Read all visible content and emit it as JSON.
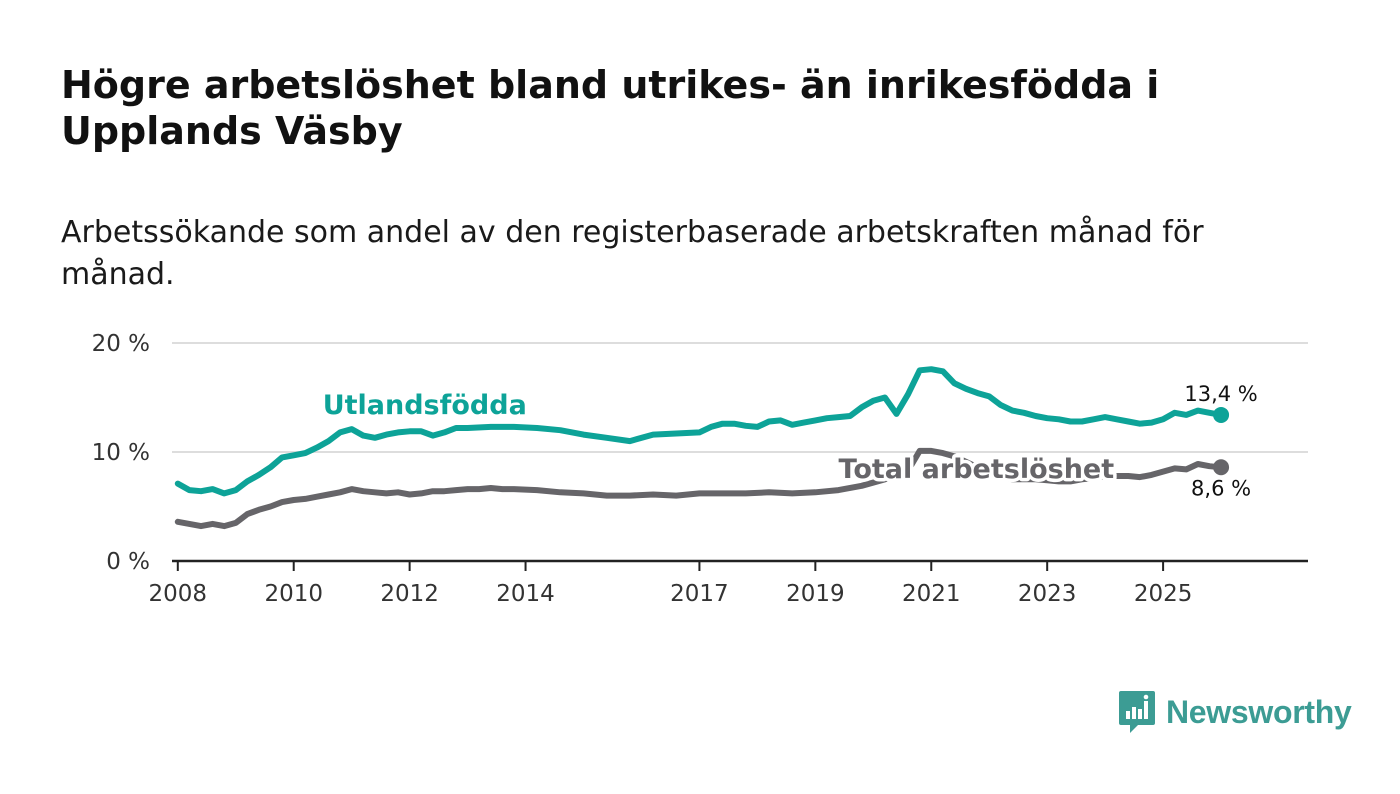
{
  "title": "Högre arbetslöshet bland utrikes- än inrikesfödda i Upplands Väsby",
  "subtitle": "Arbetssökande som andel av den registerbaserade arbetskraften månad för månad.",
  "brand": {
    "name": "Newsworthy",
    "color": "#3c9c94"
  },
  "colors": {
    "utlandsfodda": "#0da398",
    "total": "#666569",
    "grid": "#dddddd",
    "axis": "#222222"
  },
  "chart_data": {
    "type": "line",
    "title": "Högre arbetslöshet bland utrikes- än inrikesfödda i Upplands Väsby",
    "subtitle": "Arbetssökande som andel av den registerbaserade arbetskraften månad för månad.",
    "xlabel": "",
    "ylabel": "",
    "xlim": [
      2007.9,
      2027.5
    ],
    "ylim": [
      0,
      20
    ],
    "grid": true,
    "x_ticks": [
      2008,
      2010,
      2012,
      2014,
      2017,
      2019,
      2021,
      2023,
      2025
    ],
    "x_tick_labels": [
      "2008",
      "2010",
      "2012",
      "2014",
      "2017",
      "2019",
      "2021",
      "2023",
      "2025"
    ],
    "y_ticks": [
      0,
      10,
      20
    ],
    "y_tick_labels": [
      "0 %",
      "10 %",
      "20 %"
    ],
    "series": [
      {
        "name": "Utlandsfödda",
        "label": "Utlandsfödda",
        "label_at": [
          2010.5,
          13.5
        ],
        "end_label": "13,4 %",
        "points": [
          [
            2008.0,
            7.1
          ],
          [
            2008.2,
            6.5
          ],
          [
            2008.4,
            6.4
          ],
          [
            2008.6,
            6.6
          ],
          [
            2008.8,
            6.2
          ],
          [
            2009.0,
            6.5
          ],
          [
            2009.2,
            7.3
          ],
          [
            2009.4,
            7.9
          ],
          [
            2009.6,
            8.6
          ],
          [
            2009.8,
            9.5
          ],
          [
            2010.0,
            9.7
          ],
          [
            2010.2,
            9.9
          ],
          [
            2010.4,
            10.4
          ],
          [
            2010.6,
            11.0
          ],
          [
            2010.8,
            11.8
          ],
          [
            2011.0,
            12.1
          ],
          [
            2011.2,
            11.5
          ],
          [
            2011.4,
            11.3
          ],
          [
            2011.6,
            11.6
          ],
          [
            2011.8,
            11.8
          ],
          [
            2012.0,
            11.9
          ],
          [
            2012.2,
            11.9
          ],
          [
            2012.4,
            11.5
          ],
          [
            2012.6,
            11.8
          ],
          [
            2012.8,
            12.2
          ],
          [
            2013.0,
            12.2
          ],
          [
            2013.4,
            12.3
          ],
          [
            2013.8,
            12.3
          ],
          [
            2014.2,
            12.2
          ],
          [
            2014.6,
            12.0
          ],
          [
            2015.0,
            11.6
          ],
          [
            2015.4,
            11.3
          ],
          [
            2015.8,
            11.0
          ],
          [
            2016.2,
            11.6
          ],
          [
            2016.6,
            11.7
          ],
          [
            2017.0,
            11.8
          ],
          [
            2017.2,
            12.3
          ],
          [
            2017.4,
            12.6
          ],
          [
            2017.6,
            12.6
          ],
          [
            2017.8,
            12.4
          ],
          [
            2018.0,
            12.3
          ],
          [
            2018.2,
            12.8
          ],
          [
            2018.4,
            12.9
          ],
          [
            2018.6,
            12.5
          ],
          [
            2018.8,
            12.7
          ],
          [
            2019.0,
            12.9
          ],
          [
            2019.2,
            13.1
          ],
          [
            2019.4,
            13.2
          ],
          [
            2019.6,
            13.3
          ],
          [
            2019.8,
            14.1
          ],
          [
            2020.0,
            14.7
          ],
          [
            2020.2,
            15.0
          ],
          [
            2020.4,
            13.5
          ],
          [
            2020.6,
            15.3
          ],
          [
            2020.8,
            17.5
          ],
          [
            2021.0,
            17.6
          ],
          [
            2021.2,
            17.4
          ],
          [
            2021.4,
            16.3
          ],
          [
            2021.6,
            15.8
          ],
          [
            2021.8,
            15.4
          ],
          [
            2022.0,
            15.1
          ],
          [
            2022.2,
            14.3
          ],
          [
            2022.4,
            13.8
          ],
          [
            2022.6,
            13.6
          ],
          [
            2022.8,
            13.3
          ],
          [
            2023.0,
            13.1
          ],
          [
            2023.2,
            13.0
          ],
          [
            2023.4,
            12.8
          ],
          [
            2023.6,
            12.8
          ],
          [
            2023.8,
            13.0
          ],
          [
            2024.0,
            13.2
          ],
          [
            2024.2,
            13.0
          ],
          [
            2024.4,
            12.8
          ],
          [
            2024.6,
            12.6
          ],
          [
            2024.8,
            12.7
          ],
          [
            2025.0,
            13.0
          ],
          [
            2025.2,
            13.6
          ],
          [
            2025.4,
            13.4
          ],
          [
            2025.6,
            13.8
          ],
          [
            2025.8,
            13.6
          ],
          [
            2026.0,
            13.4
          ]
        ]
      },
      {
        "name": "Total arbetslöshet",
        "label": "Total arbetslöshet",
        "label_at": [
          2019.4,
          7.6
        ],
        "end_label": "8,6 %",
        "points": [
          [
            2008.0,
            3.6
          ],
          [
            2008.2,
            3.4
          ],
          [
            2008.4,
            3.2
          ],
          [
            2008.6,
            3.4
          ],
          [
            2008.8,
            3.2
          ],
          [
            2009.0,
            3.5
          ],
          [
            2009.2,
            4.3
          ],
          [
            2009.4,
            4.7
          ],
          [
            2009.6,
            5.0
          ],
          [
            2009.8,
            5.4
          ],
          [
            2010.0,
            5.6
          ],
          [
            2010.2,
            5.7
          ],
          [
            2010.4,
            5.9
          ],
          [
            2010.6,
            6.1
          ],
          [
            2010.8,
            6.3
          ],
          [
            2011.0,
            6.6
          ],
          [
            2011.2,
            6.4
          ],
          [
            2011.4,
            6.3
          ],
          [
            2011.6,
            6.2
          ],
          [
            2011.8,
            6.3
          ],
          [
            2012.0,
            6.1
          ],
          [
            2012.2,
            6.2
          ],
          [
            2012.4,
            6.4
          ],
          [
            2012.6,
            6.4
          ],
          [
            2012.8,
            6.5
          ],
          [
            2013.0,
            6.6
          ],
          [
            2013.2,
            6.6
          ],
          [
            2013.4,
            6.7
          ],
          [
            2013.6,
            6.6
          ],
          [
            2013.8,
            6.6
          ],
          [
            2014.2,
            6.5
          ],
          [
            2014.6,
            6.3
          ],
          [
            2015.0,
            6.2
          ],
          [
            2015.4,
            6.0
          ],
          [
            2015.8,
            6.0
          ],
          [
            2016.2,
            6.1
          ],
          [
            2016.6,
            6.0
          ],
          [
            2017.0,
            6.2
          ],
          [
            2017.4,
            6.2
          ],
          [
            2017.8,
            6.2
          ],
          [
            2018.2,
            6.3
          ],
          [
            2018.6,
            6.2
          ],
          [
            2019.0,
            6.3
          ],
          [
            2019.4,
            6.5
          ],
          [
            2019.8,
            6.9
          ],
          [
            2020.2,
            7.5
          ],
          [
            2020.6,
            8.3
          ],
          [
            2020.8,
            10.1
          ],
          [
            2021.0,
            10.1
          ],
          [
            2021.2,
            9.9
          ],
          [
            2021.4,
            9.6
          ],
          [
            2021.6,
            9.1
          ],
          [
            2021.8,
            8.6
          ],
          [
            2022.0,
            8.0
          ],
          [
            2022.2,
            7.7
          ],
          [
            2022.4,
            7.5
          ],
          [
            2022.6,
            7.5
          ],
          [
            2022.8,
            7.5
          ],
          [
            2023.0,
            7.4
          ],
          [
            2023.2,
            7.3
          ],
          [
            2023.4,
            7.3
          ],
          [
            2023.6,
            7.5
          ],
          [
            2023.8,
            7.6
          ],
          [
            2024.0,
            7.8
          ],
          [
            2024.2,
            7.8
          ],
          [
            2024.4,
            7.8
          ],
          [
            2024.6,
            7.7
          ],
          [
            2024.8,
            7.9
          ],
          [
            2025.0,
            8.2
          ],
          [
            2025.2,
            8.5
          ],
          [
            2025.4,
            8.4
          ],
          [
            2025.6,
            8.9
          ],
          [
            2025.8,
            8.7
          ],
          [
            2026.0,
            8.6
          ]
        ]
      }
    ]
  }
}
